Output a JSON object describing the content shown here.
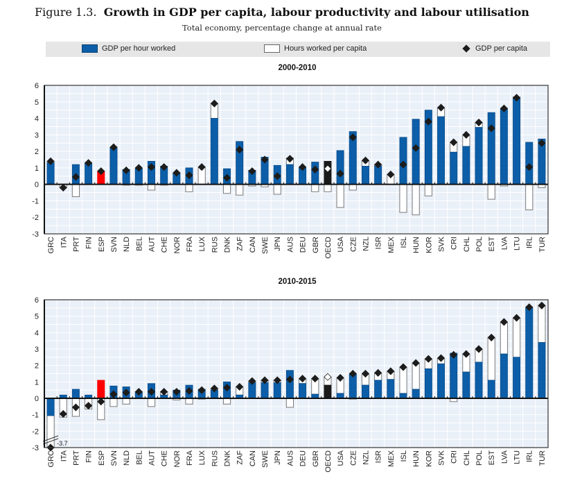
{
  "figure": {
    "number": "Figure 1.3.",
    "title": "Growth in GDP per capita, labour productivity and labour utilisation",
    "subtitle": "Total economy, percentage change at annual rate"
  },
  "legend": {
    "items": [
      {
        "label": "GDP per hour worked",
        "symbol": "blue-bar"
      },
      {
        "label": "Hours worked per capita",
        "symbol": "white-bar"
      },
      {
        "label": "GDP per capita",
        "symbol": "diamond"
      }
    ]
  },
  "colors": {
    "productivity": "#0c5ea8",
    "highlight_esp": "#ff0000",
    "highlight_oecd": "#1a1a1a",
    "hours": "#ffffff",
    "diamond": "#1c1c1c",
    "plot_bg": "#eaf0f8"
  },
  "chart_data": [
    {
      "type": "bar",
      "stacked": true,
      "title": "2000-2010",
      "xlabel": "",
      "ylabel": "",
      "ylim": [
        -3,
        6
      ],
      "yticks": [
        "6",
        "5",
        "4",
        "3",
        "2",
        "1",
        "0",
        "-1",
        "-2",
        "-3"
      ],
      "grid": true,
      "legend_position": "top",
      "categories": [
        "GRC",
        "ITA",
        "PRT",
        "FIN",
        "ESP",
        "SVN",
        "NLD",
        "BEL",
        "AUT",
        "CHE",
        "NOR",
        "FRA",
        "LUX",
        "RUS",
        "DNK",
        "ZAF",
        "CAN",
        "SWE",
        "JPN",
        "AUS",
        "DEU",
        "GBR",
        "OECD",
        "USA",
        "CZE",
        "NZL",
        "ISR",
        "MEX",
        "ISL",
        "HUN",
        "KOR",
        "SVK",
        "CRI",
        "CHL",
        "POL",
        "EST",
        "LVA",
        "LTU",
        "IRL",
        "TUR"
      ],
      "highlight": {
        "ESP": "red",
        "OECD": "black"
      },
      "series": [
        {
          "name": "GDP per hour worked",
          "kind": "bar",
          "values": [
            1.3,
            0,
            1.2,
            1.3,
            0.8,
            2.2,
            0.9,
            1.0,
            1.4,
            1.1,
            0.65,
            1.0,
            0,
            4.0,
            0.95,
            2.6,
            0.85,
            1.65,
            1.15,
            1.2,
            1.05,
            1.35,
            1.4,
            2.05,
            3.2,
            1.1,
            1.1,
            0,
            2.85,
            3.95,
            4.5,
            4.1,
            1.95,
            2.3,
            3.45,
            4.35,
            4.6,
            5.2,
            2.55,
            2.75
          ]
        },
        {
          "name": "Hours worked per capita",
          "kind": "bar",
          "values": [
            0.1,
            -0.2,
            -0.75,
            0,
            0,
            0.05,
            -0.05,
            -0.05,
            -0.35,
            -0.05,
            0.05,
            -0.45,
            1.05,
            0.9,
            -0.55,
            -0.65,
            -0.1,
            -0.15,
            -0.6,
            0.4,
            0,
            -0.45,
            -0.45,
            -1.4,
            -0.35,
            0.35,
            0.1,
            0.6,
            -1.7,
            -1.85,
            -0.7,
            0.55,
            0.6,
            0.7,
            0.3,
            -0.9,
            -0.1,
            0.1,
            -1.55,
            -0.2
          ]
        },
        {
          "name": "GDP per capita",
          "kind": "marker",
          "values": [
            1.4,
            -0.2,
            0.45,
            1.3,
            0.8,
            2.25,
            0.85,
            1.0,
            1.05,
            1.05,
            0.7,
            0.55,
            1.05,
            4.9,
            0.4,
            2.1,
            0.8,
            1.5,
            0.5,
            1.55,
            1.05,
            0.9,
            0.95,
            0.65,
            2.85,
            1.45,
            1.2,
            0.6,
            1.2,
            2.2,
            3.8,
            4.65,
            2.55,
            3.0,
            3.75,
            3.4,
            4.6,
            5.25,
            1.05,
            2.5
          ]
        }
      ]
    },
    {
      "type": "bar",
      "stacked": true,
      "title": "2010-2015",
      "xlabel": "",
      "ylabel": "",
      "ylim": [
        -3,
        6
      ],
      "yticks": [
        "6",
        "5",
        "4",
        "3",
        "2",
        "1",
        "0",
        "-1",
        "-2",
        "-3"
      ],
      "grid": true,
      "legend_position": "top",
      "annotations": [
        {
          "category": "GRC",
          "text": "-3.7",
          "note": "axis break; value below axis minimum"
        }
      ],
      "categories": [
        "GRC",
        "ITA",
        "PRT",
        "FIN",
        "ESP",
        "SVN",
        "NLD",
        "BEL",
        "AUT",
        "CHE",
        "NOR",
        "FRA",
        "LUX",
        "RUS",
        "DNK",
        "ZAF",
        "CAN",
        "SWE",
        "JPN",
        "AUS",
        "DEU",
        "GBR",
        "OECD",
        "USA",
        "CZE",
        "NZL",
        "ISR",
        "MEX",
        "ISL",
        "HUN",
        "KOR",
        "SVK",
        "CRI",
        "CHL",
        "POL",
        "EST",
        "LVA",
        "LTU",
        "IRL",
        "TUR"
      ],
      "highlight": {
        "ESP": "red",
        "OECD": "black"
      },
      "series": [
        {
          "name": "GDP per hour worked",
          "kind": "bar",
          "values": [
            -1.05,
            0.2,
            0.55,
            0.2,
            1.1,
            0.75,
            0.7,
            0.35,
            0.9,
            0.2,
            0.5,
            0.8,
            0.55,
            0.5,
            1.0,
            0.2,
            0.95,
            0.95,
            0.95,
            1.7,
            0.9,
            0.25,
            0.8,
            0.3,
            1.5,
            0.8,
            1.1,
            1.15,
            0.3,
            0.55,
            1.8,
            2.1,
            2.75,
            1.6,
            2.2,
            1.1,
            2.7,
            2.5,
            5.55,
            3.4
          ]
        },
        {
          "name": "Hours worked per capita",
          "kind": "bar",
          "values": [
            -2.65,
            -1.15,
            -1.1,
            -0.65,
            -1.3,
            -0.5,
            -0.35,
            0.05,
            -0.5,
            0.2,
            -0.1,
            -0.35,
            -0.05,
            0.1,
            -0.35,
            0.5,
            0.1,
            0.15,
            0.15,
            -0.55,
            0.3,
            0.95,
            0.5,
            0.95,
            -0.05,
            0.7,
            0.45,
            0.5,
            1.6,
            1.6,
            0.6,
            0.35,
            -0.2,
            1.1,
            0.8,
            2.6,
            1.95,
            2.4,
            0,
            2.25
          ]
        },
        {
          "name": "GDP per capita",
          "kind": "marker",
          "values": [
            -3.7,
            -0.95,
            -0.55,
            -0.45,
            -0.2,
            0.25,
            0.35,
            0.4,
            0.4,
            0.4,
            0.4,
            0.45,
            0.5,
            0.6,
            0.65,
            0.7,
            1.05,
            1.1,
            1.1,
            1.15,
            1.2,
            1.2,
            1.3,
            1.25,
            1.5,
            1.5,
            1.55,
            1.65,
            1.9,
            2.15,
            2.4,
            2.45,
            2.65,
            2.7,
            3.0,
            3.7,
            4.65,
            4.9,
            5.55,
            5.65
          ]
        }
      ]
    }
  ]
}
